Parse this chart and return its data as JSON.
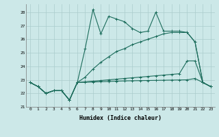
{
  "xlabel": "Humidex (Indice chaleur)",
  "ylabel": "",
  "xlim": [
    -0.5,
    23.5
  ],
  "ylim": [
    21.0,
    28.6
  ],
  "yticks": [
    21,
    22,
    23,
    24,
    25,
    26,
    27,
    28
  ],
  "xticks": [
    0,
    1,
    2,
    3,
    4,
    5,
    6,
    7,
    8,
    9,
    10,
    11,
    12,
    13,
    14,
    15,
    16,
    17,
    18,
    19,
    20,
    21,
    22,
    23
  ],
  "background_color": "#cce8e8",
  "grid_color": "#aacccc",
  "line_color": "#1a6b5a",
  "line1": [
    22.8,
    22.5,
    22.0,
    22.2,
    22.2,
    21.5,
    22.8,
    25.3,
    28.2,
    26.4,
    27.7,
    27.5,
    27.3,
    26.8,
    26.5,
    26.6,
    28.0,
    26.6,
    26.6,
    26.6,
    26.5,
    25.8,
    22.8,
    22.5
  ],
  "line2": [
    22.8,
    22.5,
    22.0,
    22.2,
    22.2,
    21.5,
    22.8,
    23.2,
    23.8,
    24.3,
    24.7,
    25.1,
    25.3,
    25.6,
    25.8,
    26.0,
    26.2,
    26.4,
    26.5,
    26.5,
    26.5,
    25.8,
    22.8,
    22.5
  ],
  "line3": [
    22.8,
    22.5,
    22.0,
    22.2,
    22.2,
    21.5,
    22.8,
    22.85,
    22.9,
    22.95,
    23.0,
    23.05,
    23.1,
    23.15,
    23.2,
    23.25,
    23.3,
    23.35,
    23.4,
    23.45,
    24.4,
    24.4,
    22.8,
    22.5
  ],
  "line4": [
    22.8,
    22.5,
    22.0,
    22.2,
    22.2,
    21.5,
    22.8,
    22.82,
    22.84,
    22.86,
    22.88,
    22.9,
    22.92,
    22.93,
    22.94,
    22.95,
    22.96,
    22.97,
    22.98,
    22.99,
    23.0,
    23.1,
    22.8,
    22.5
  ]
}
